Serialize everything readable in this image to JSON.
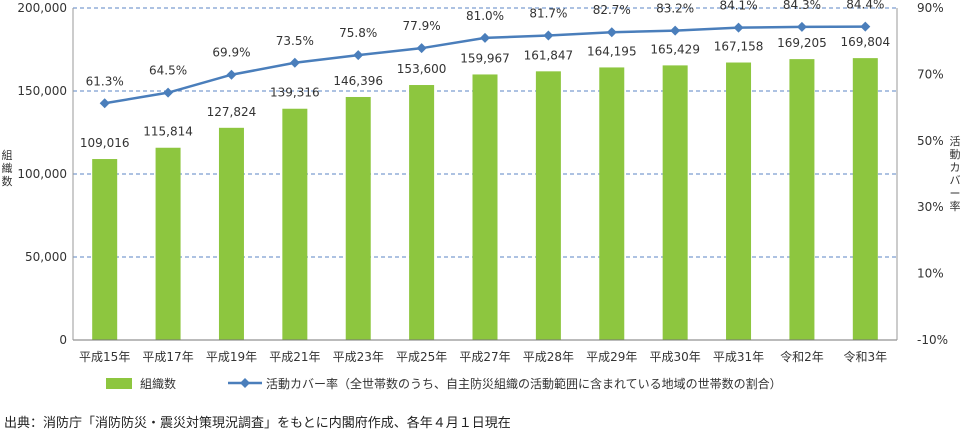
{
  "chart_data": {
    "type": "bar",
    "categories": [
      "平成15年",
      "平成17年",
      "平成19年",
      "平成21年",
      "平成23年",
      "平成25年",
      "平成27年",
      "平成28年",
      "平成29年",
      "平成30年",
      "平成31年",
      "令和2年",
      "令和3年"
    ],
    "series": [
      {
        "name": "組織数",
        "type": "bar",
        "axis": "left",
        "color": "#8dc63f",
        "values": [
          109016,
          115814,
          127824,
          139316,
          146396,
          153600,
          159967,
          161847,
          164195,
          165429,
          167158,
          169205,
          169804
        ],
        "labels": [
          "109,016",
          "115,814",
          "127,824",
          "139,316",
          "146,396",
          "153,600",
          "159,967",
          "161,847",
          "164,195",
          "165,429",
          "167,158",
          "169,205",
          "169,804"
        ]
      },
      {
        "name": "活動カバー率（全世帯数のうち、自主防災組織の活動範囲に含まれている地域の世帯数の割合）",
        "type": "line",
        "axis": "right",
        "color": "#4a7ebb",
        "values": [
          61.3,
          64.5,
          69.9,
          73.5,
          75.8,
          77.9,
          81.0,
          81.7,
          82.7,
          83.2,
          84.1,
          84.3,
          84.4
        ],
        "labels": [
          "61.3%",
          "64.5%",
          "69.9%",
          "73.5%",
          "75.8%",
          "77.9%",
          "81.0%",
          "81.7%",
          "82.7%",
          "83.2%",
          "84.1%",
          "84.3%",
          "84.4%"
        ]
      }
    ],
    "y_left": {
      "label": "組織数",
      "range": [
        0,
        200000
      ],
      "ticks": [
        0,
        50000,
        100000,
        150000,
        200000
      ],
      "tick_labels": [
        "0",
        "50,000",
        "100,000",
        "150,000",
        "200,000"
      ]
    },
    "y_right": {
      "label": "活動カバー率",
      "range": [
        -10,
        90
      ],
      "ticks": [
        -10,
        10,
        30,
        50,
        70,
        90
      ],
      "tick_labels": [
        "-10%",
        "10%",
        "30%",
        "50%",
        "70%",
        "90%"
      ]
    },
    "grid": true,
    "legend": "bottom",
    "source": "出典：消防庁「消防防災・震災対策現況調査」をもとに内閣府作成、各年４月１日現在"
  }
}
